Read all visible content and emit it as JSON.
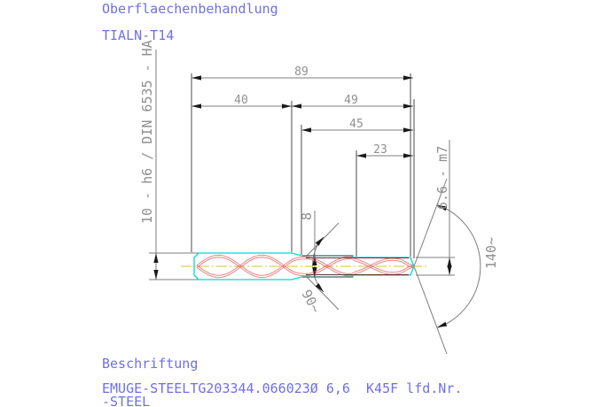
{
  "labels": {
    "surface_treatment_title": "Oberflaechenbehandlung",
    "surface_treatment_value": "TIALN-T14",
    "inscription_title": "Beschriftung",
    "inscription_line1": "EMUGE-STEELTG203344.066023Ø 6,6  K45F lfd.Nr.",
    "inscription_line2": "-STEEL"
  },
  "dimensions": {
    "overall_length": "89",
    "shank_length": "40",
    "front_section_length": "49",
    "neck_to_tip_length": "45",
    "flute_length": "23",
    "shank_diameter": "10 - h6 / DIN 6535 - HA",
    "neck_diameter": "8",
    "cutting_diameter": "6.6 - m7",
    "neck_chamfer_angle": "90~",
    "point_angle": "140~"
  },
  "colors": {
    "label_text": "#6f6fe8",
    "tool_outline": "#00d8d8",
    "flutes": "#e46060",
    "centerline": "#ddd052",
    "dimension_text": "#8f8f8f"
  }
}
